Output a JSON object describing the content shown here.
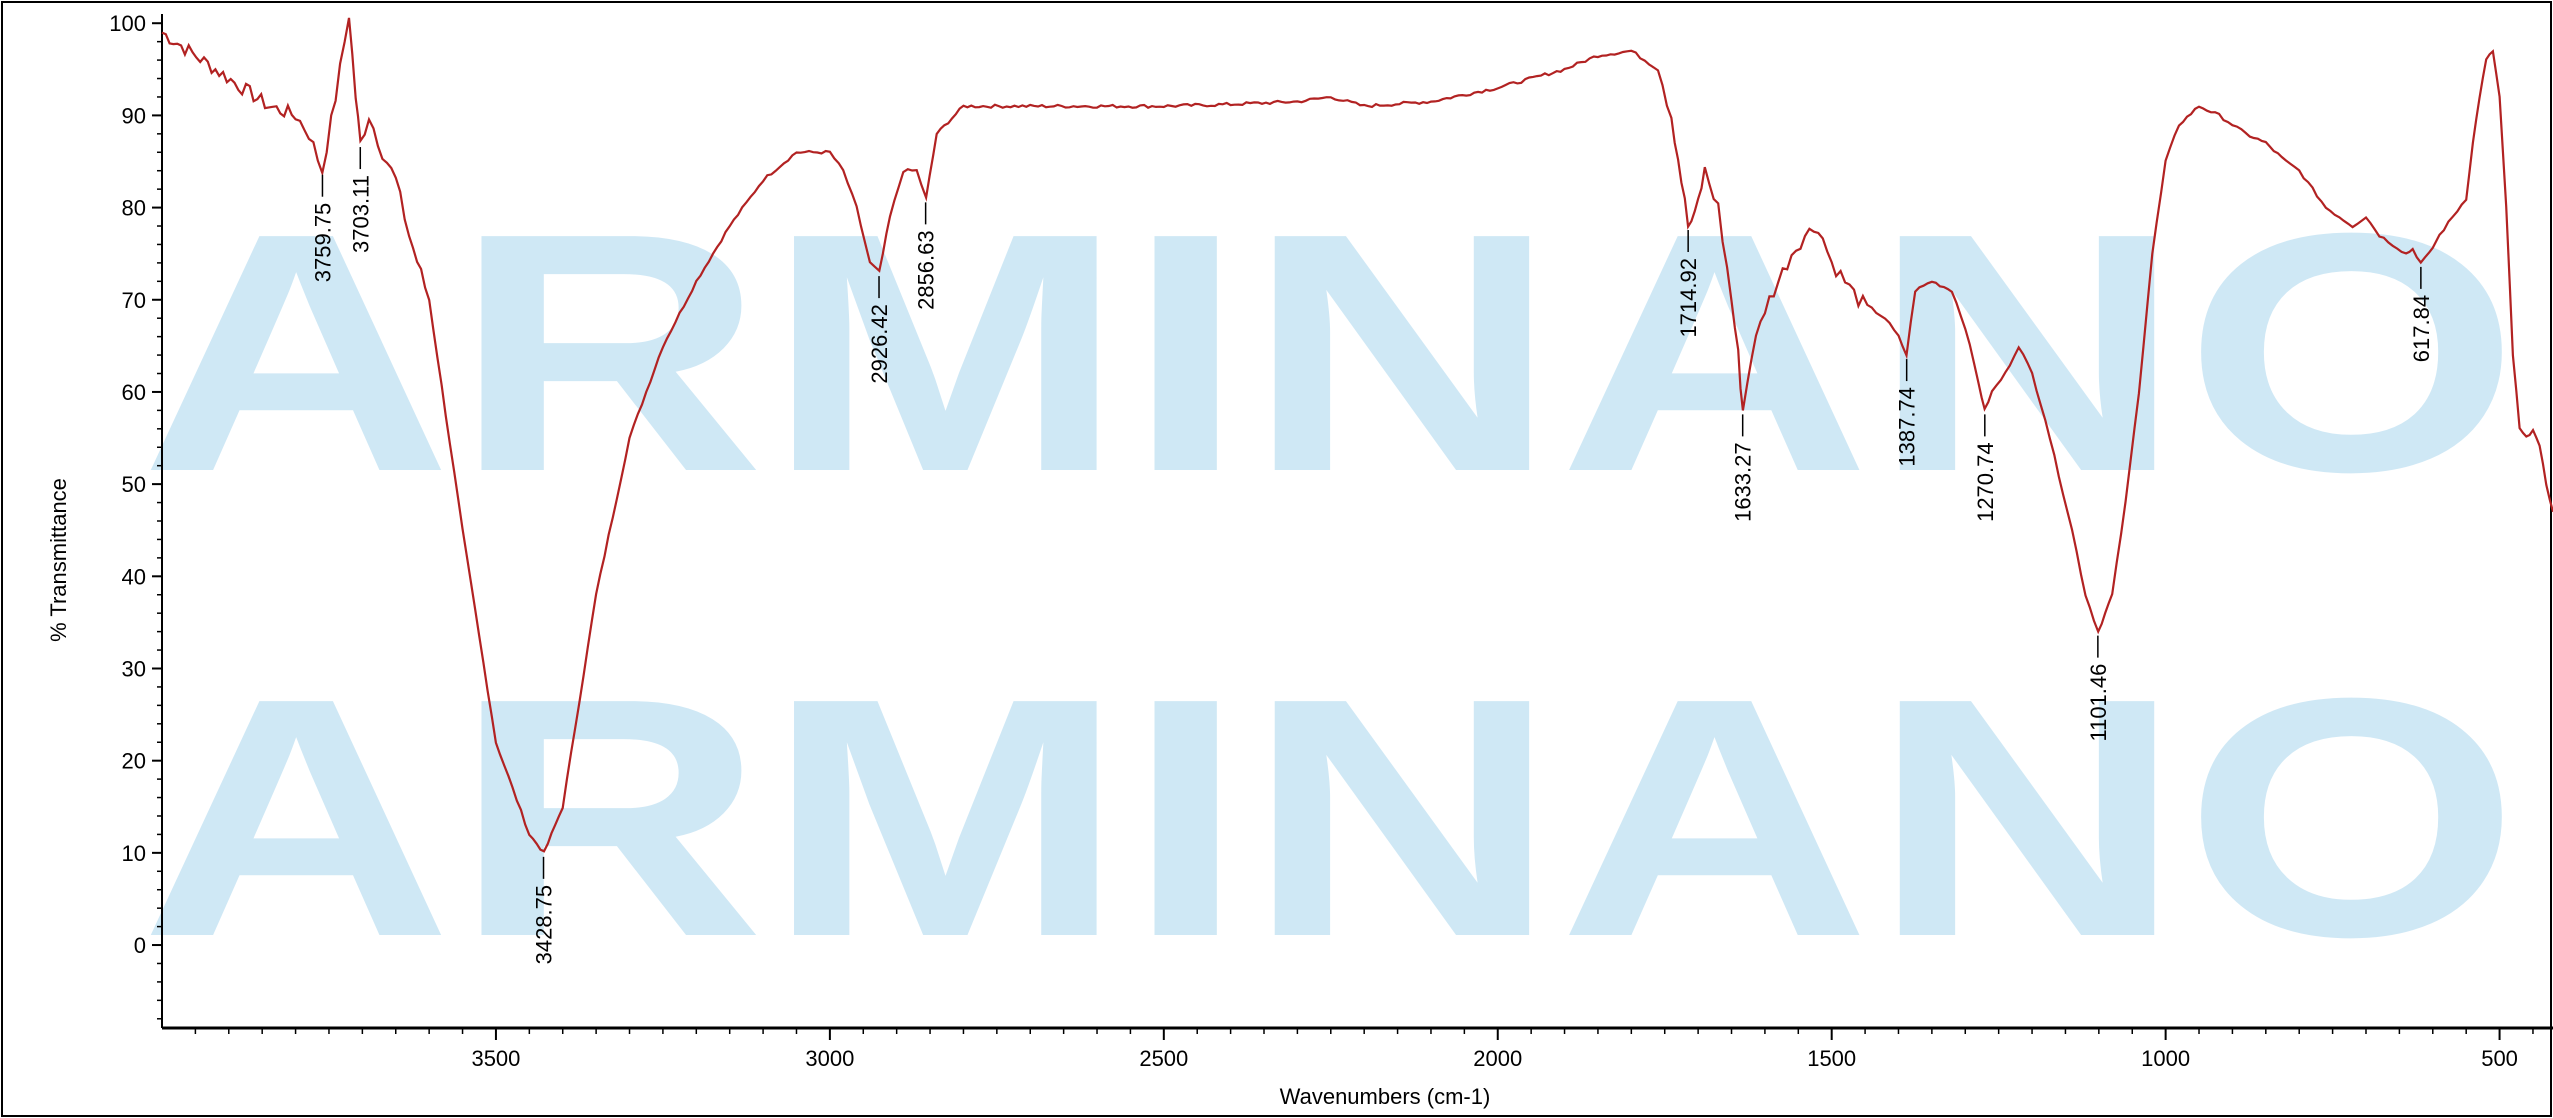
{
  "watermark": "ARMINANO",
  "chart_data": {
    "type": "line",
    "title": "",
    "xlabel": "Wavenumbers (cm-1)",
    "ylabel": "% Transmittance",
    "xlim": [
      4000,
      420
    ],
    "ylim": [
      -9,
      101
    ],
    "x_reversed": true,
    "x_ticks": [
      3500,
      3000,
      2500,
      2000,
      1500,
      1000,
      500
    ],
    "y_ticks": [
      0,
      10,
      20,
      30,
      40,
      50,
      60,
      70,
      80,
      90,
      100
    ],
    "grid": false,
    "line_color": "#b22222",
    "series": [
      {
        "x": [
          4000,
          3960,
          3920,
          3880,
          3840,
          3800,
          3780,
          3760,
          3740,
          3720,
          3710,
          3703,
          3690,
          3670,
          3650,
          3630,
          3600,
          3550,
          3500,
          3450,
          3428,
          3400,
          3350,
          3300,
          3250,
          3200,
          3150,
          3100,
          3050,
          3000,
          2980,
          2960,
          2940,
          2926,
          2910,
          2890,
          2870,
          2856,
          2840,
          2800,
          2700,
          2600,
          2500,
          2400,
          2300,
          2250,
          2200,
          2100,
          2000,
          1900,
          1850,
          1800,
          1780,
          1760,
          1740,
          1725,
          1715,
          1705,
          1690,
          1670,
          1650,
          1640,
          1633,
          1620,
          1600,
          1580,
          1560,
          1540,
          1520,
          1500,
          1480,
          1460,
          1440,
          1420,
          1400,
          1388,
          1375,
          1350,
          1320,
          1300,
          1280,
          1271,
          1260,
          1240,
          1220,
          1200,
          1180,
          1160,
          1140,
          1120,
          1101,
          1080,
          1060,
          1040,
          1020,
          1000,
          980,
          950,
          920,
          900,
          880,
          850,
          820,
          800,
          780,
          760,
          740,
          720,
          700,
          680,
          660,
          640,
          630,
          618,
          605,
          590,
          570,
          550,
          540,
          530,
          520,
          510,
          500,
          490,
          480,
          470,
          460,
          450,
          440,
          430,
          420
        ],
        "y": [
          99,
          97,
          95,
          93,
          91,
          90,
          88,
          84,
          92,
          101,
          92,
          87,
          90,
          86,
          83,
          77,
          70,
          45,
          22,
          12,
          10,
          15,
          38,
          55,
          65,
          72,
          78,
          83,
          86,
          86,
          84,
          80,
          74,
          73,
          79,
          84,
          84,
          81,
          88,
          91,
          91,
          91,
          91,
          91.2,
          91.5,
          92,
          91,
          91.5,
          93,
          95,
          96.5,
          97,
          96,
          95,
          90,
          83,
          78,
          79,
          84,
          80,
          70,
          64,
          58,
          64,
          69,
          72,
          75,
          77,
          78,
          74,
          72,
          70,
          69,
          68,
          66,
          64,
          71,
          72,
          71,
          67,
          61,
          58,
          60,
          62,
          65,
          62,
          57,
          51,
          45,
          38,
          34,
          38,
          48,
          60,
          75,
          85,
          89,
          91,
          90,
          89,
          88,
          87,
          85,
          84,
          82,
          80,
          79,
          78,
          79,
          77,
          76,
          75,
          75.5,
          74,
          75,
          77,
          79,
          81,
          87,
          92,
          96,
          97,
          92,
          80,
          64,
          56,
          55,
          56,
          54,
          50,
          47
        ]
      }
    ],
    "peak_labels": [
      {
        "x": 3759.75,
        "y": 84,
        "label": "3759.75"
      },
      {
        "x": 3703.11,
        "y": 87,
        "label": "3703.11"
      },
      {
        "x": 3428.75,
        "y": 10,
        "label": "3428.75"
      },
      {
        "x": 2926.42,
        "y": 73,
        "label": "2926.42"
      },
      {
        "x": 2856.63,
        "y": 81,
        "label": "2856.63"
      },
      {
        "x": 1714.92,
        "y": 78,
        "label": "1714.92"
      },
      {
        "x": 1633.27,
        "y": 58,
        "label": "1633.27"
      },
      {
        "x": 1387.74,
        "y": 64,
        "label": "1387.74"
      },
      {
        "x": 1270.74,
        "y": 58,
        "label": "1270.74"
      },
      {
        "x": 1101.46,
        "y": 34,
        "label": "1101.46"
      },
      {
        "x": 617.84,
        "y": 74,
        "label": "617.84"
      }
    ]
  }
}
